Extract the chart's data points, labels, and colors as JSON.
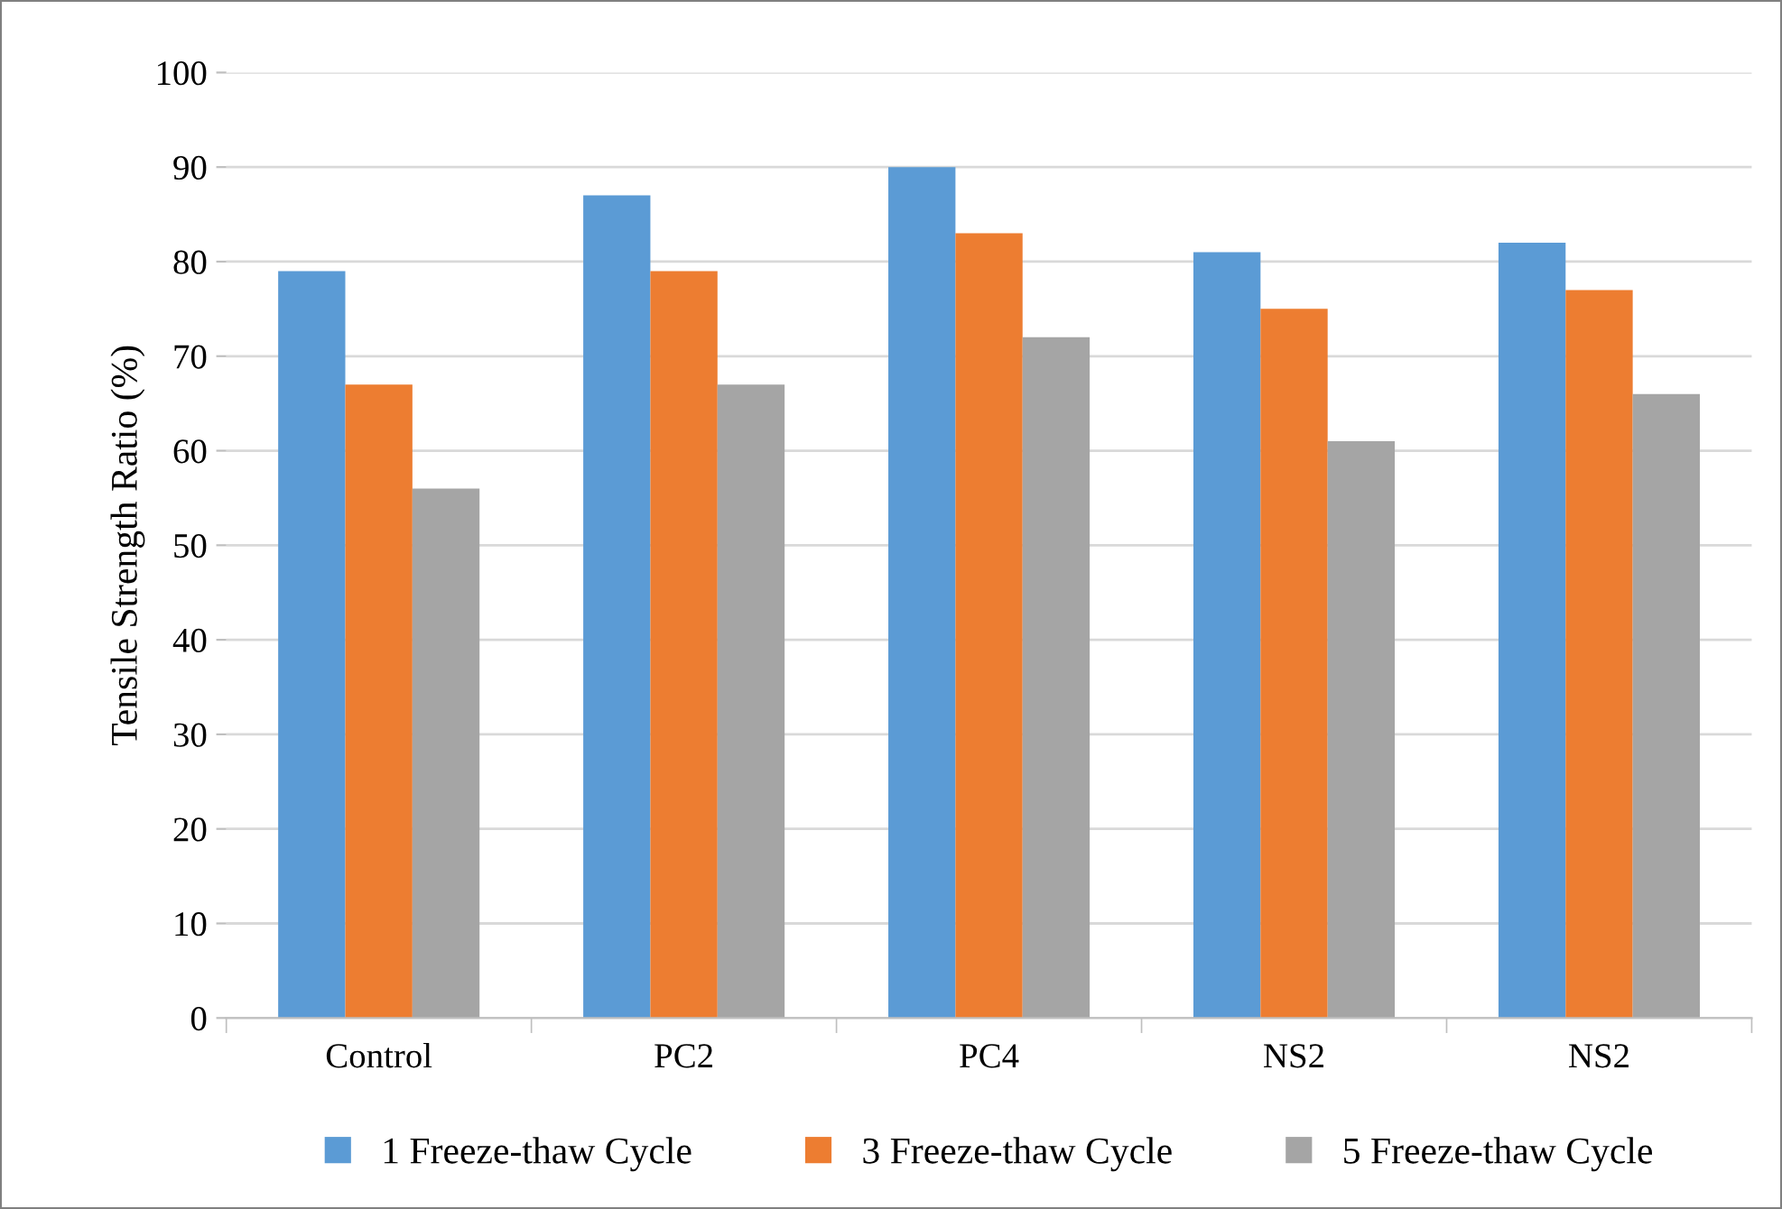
{
  "chart_data": {
    "type": "bar",
    "ylabel": "Tensile Strength Ratio (%)",
    "categories": [
      "Control",
      "PC2",
      "PC4",
      "NS2",
      "NS2"
    ],
    "series": [
      {
        "name": "1 Freeze-thaw Cycle",
        "color": "#5b9bd5",
        "values": [
          79,
          87,
          90,
          81,
          82
        ]
      },
      {
        "name": "3 Freeze-thaw Cycle",
        "color": "#ed7d31",
        "values": [
          67,
          79,
          83,
          75,
          77
        ]
      },
      {
        "name": "5 Freeze-thaw Cycle",
        "color": "#a5a5a5",
        "values": [
          56,
          67,
          72,
          61,
          66
        ]
      }
    ],
    "ylim": [
      0,
      100
    ],
    "yticks": [
      0,
      10,
      20,
      30,
      40,
      50,
      60,
      70,
      80,
      90,
      100
    ],
    "grid": "y",
    "legend": "bottom"
  }
}
